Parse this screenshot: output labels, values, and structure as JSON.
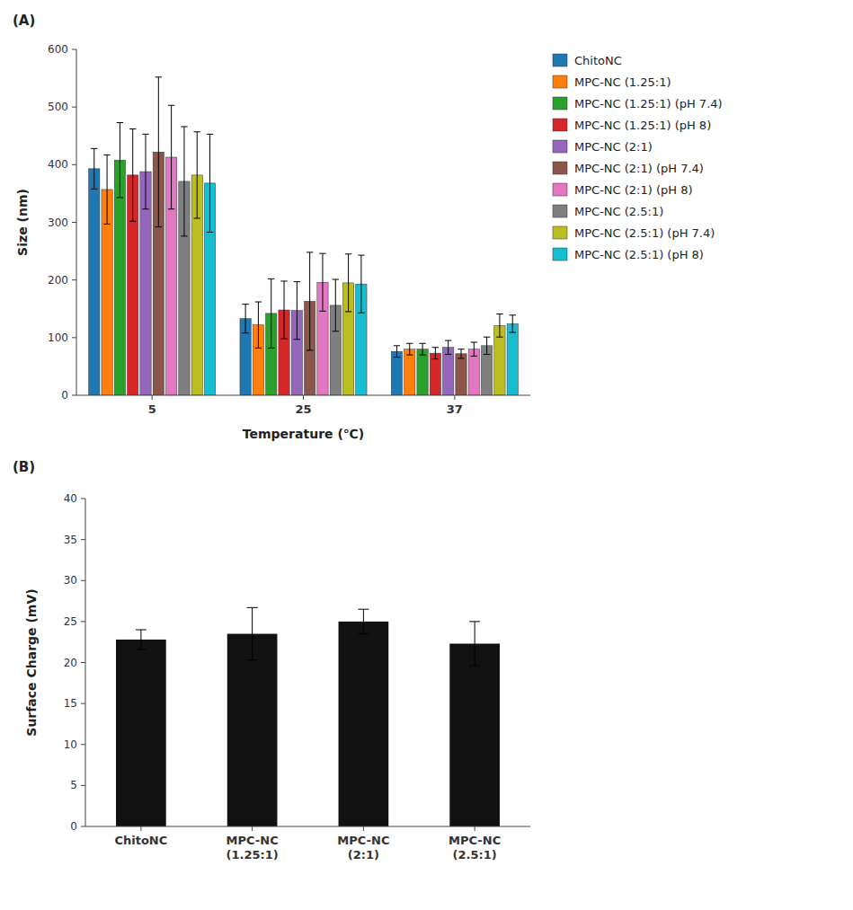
{
  "chart_data": [
    {
      "type": "bar",
      "title": "(A)",
      "categories": [
        "5",
        "25",
        "37"
      ],
      "series": [
        {
          "name": "ChitoNC",
          "values": [
            393,
            133,
            76
          ],
          "errors": [
            35,
            25,
            10
          ]
        },
        {
          "name": "MPC-NC (1.25:1)",
          "values": [
            357,
            122,
            80
          ],
          "errors": [
            60,
            40,
            10
          ]
        },
        {
          "name": "MPC-NC (1.25:1) (pH 7.4)",
          "values": [
            408,
            142,
            80
          ],
          "errors": [
            65,
            60,
            10
          ]
        },
        {
          "name": "MPC-NC (1.25:1) (pH 8)",
          "values": [
            382,
            148,
            73
          ],
          "errors": [
            80,
            50,
            10
          ]
        },
        {
          "name": "MPC-NC (2:1)",
          "values": [
            388,
            147,
            83
          ],
          "errors": [
            65,
            50,
            12
          ]
        },
        {
          "name": "MPC-NC (2:1) (pH 7.4)",
          "values": [
            422,
            163,
            72
          ],
          "errors": [
            130,
            85,
            8
          ]
        },
        {
          "name": "MPC-NC (2:1) (pH 8)",
          "values": [
            413,
            196,
            80
          ],
          "errors": [
            90,
            50,
            12
          ]
        },
        {
          "name": "MPC-NC (2.5:1)",
          "values": [
            371,
            156,
            86
          ],
          "errors": [
            95,
            45,
            15
          ]
        },
        {
          "name": "MPC-NC (2.5:1) (pH 7.4)",
          "values": [
            382,
            195,
            121
          ],
          "errors": [
            75,
            50,
            20
          ]
        },
        {
          "name": "MPC-NC (2.5:1) (pH 8)",
          "values": [
            368,
            193,
            124
          ],
          "errors": [
            85,
            50,
            15
          ]
        }
      ],
      "x_label": "Temperature (℃)",
      "y_label": "Size (nm)",
      "ylim": [
        0,
        600
      ],
      "yticks": [
        0,
        100,
        200,
        300,
        400,
        500,
        600
      ],
      "grid": false,
      "legend": "right"
    },
    {
      "type": "bar",
      "title": "(B)",
      "categories": [
        "ChitoNC",
        "MPC-NC\n(1.25:1)",
        "MPC-NC\n(2:1)",
        "MPC-NC\n(2.5:1)"
      ],
      "values": [
        22.8,
        23.5,
        25.0,
        22.3
      ],
      "errors": [
        1.2,
        3.2,
        1.5,
        2.7
      ],
      "color": "#111111",
      "y_label": "Surface Charge (mV)",
      "ylim": [
        0,
        40
      ],
      "yticks": [
        0,
        5,
        10,
        15,
        20,
        25,
        30,
        35,
        40
      ],
      "grid": false
    }
  ]
}
